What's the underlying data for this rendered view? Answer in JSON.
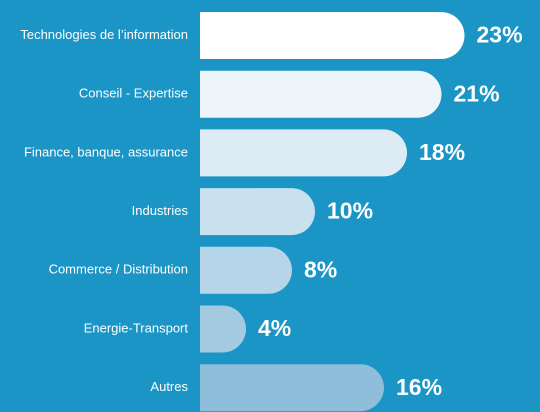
{
  "chart_data": {
    "type": "bar",
    "orientation": "horizontal",
    "categories": [
      "Technologies de l’information",
      "Conseil - Expertise",
      "Finance, banque, assurance",
      "Industries",
      "Commerce / Distribution",
      "Energie-Transport",
      "Autres"
    ],
    "values": [
      23,
      21,
      18,
      10,
      8,
      4,
      16
    ],
    "value_labels": [
      "23%",
      "21%",
      "18%",
      "10%",
      "8%",
      "4%",
      "16%"
    ],
    "colors": [
      "#ffffff",
      "#edf5fa",
      "#dcebf4",
      "#c9e0ee",
      "#b6d5e8",
      "#a4cae2",
      "#8fbedb"
    ]
  }
}
